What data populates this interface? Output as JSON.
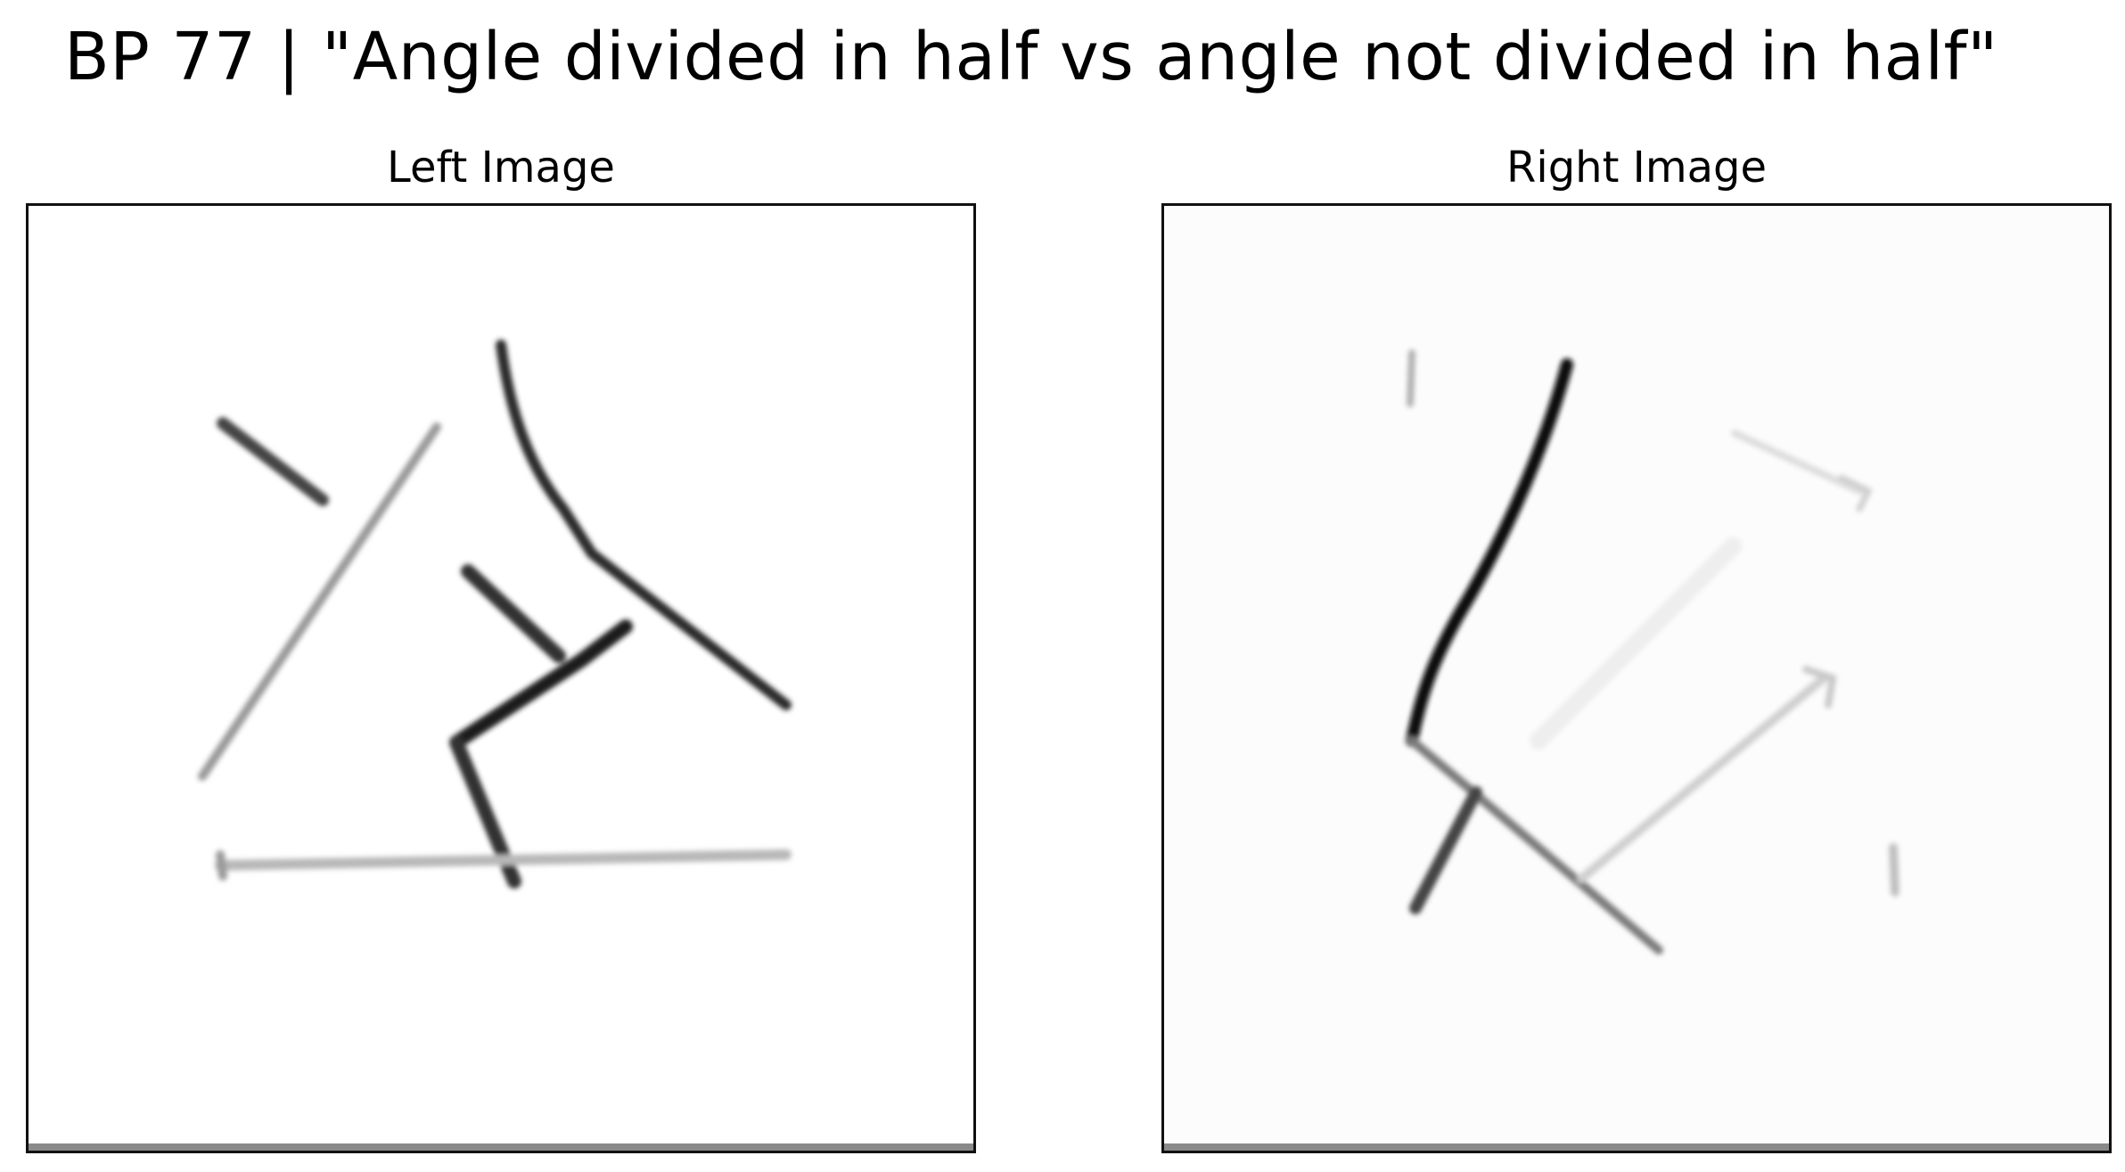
{
  "figure": {
    "suptitle": "BP 77 | \"Angle divided in half vs angle not divided in half\""
  },
  "panels": {
    "left": {
      "title": "Left Image"
    },
    "right": {
      "title": "Right Image"
    }
  }
}
